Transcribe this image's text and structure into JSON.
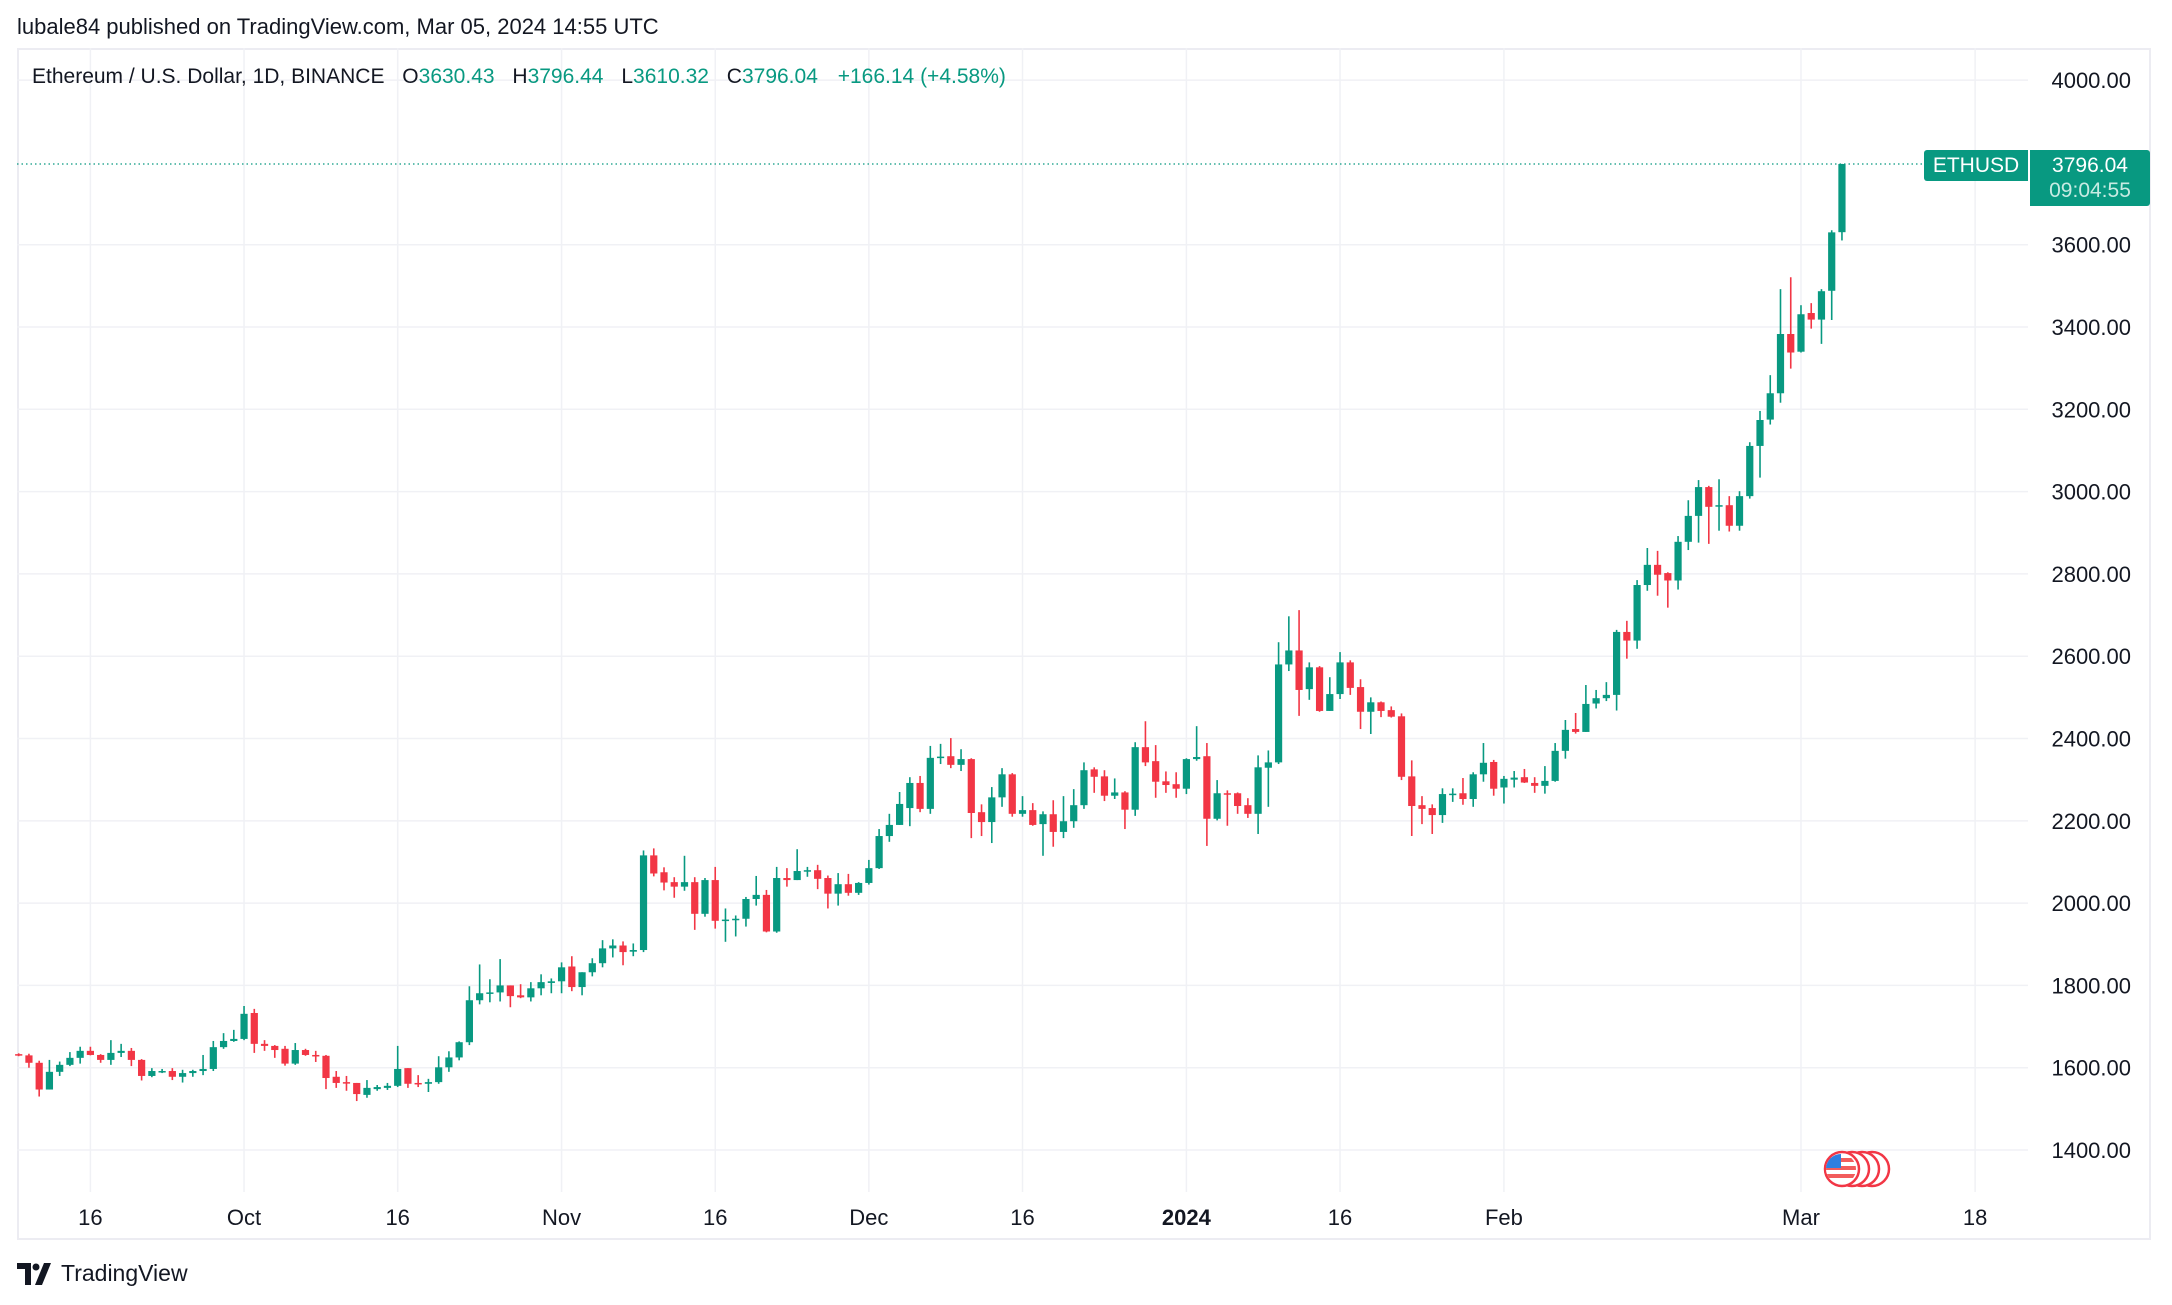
{
  "header": {
    "published": "lubale84 published on TradingView.com, Mar 05, 2024 14:55 UTC"
  },
  "legend": {
    "symbol": "Ethereum / U.S. Dollar, 1D, BINANCE",
    "o_label": "O",
    "o": "3630.43",
    "h_label": "H",
    "h": "3796.44",
    "l_label": "L",
    "l": "3610.32",
    "c_label": "C",
    "c": "3796.04",
    "change": "+166.14 (+4.58%)"
  },
  "price_label": {
    "ticker": "ETHUSD",
    "price": "3796.04",
    "countdown": "09:04:55"
  },
  "footer": {
    "brand": "TradingView"
  },
  "icons": {
    "events": "us-flag-economic-events-icon",
    "logo": "tradingview-logo-icon"
  },
  "colors": {
    "up": "#089981",
    "down": "#f23645",
    "grid": "#f0f1f5",
    "text": "#131722"
  },
  "chart_data": {
    "type": "candlestick",
    "title": "",
    "ylim": [
      1298,
      4078
    ],
    "grid": true,
    "yticks": [
      "1400.00",
      "1600.00",
      "1800.00",
      "2000.00",
      "2200.00",
      "2400.00",
      "2600.00",
      "2800.00",
      "3000.00",
      "3200.00",
      "3400.00",
      "3600.00",
      "4000.00"
    ],
    "xticks": [
      {
        "label": "16",
        "date": "2023-09-16"
      },
      {
        "label": "Oct",
        "date": "2023-10-01"
      },
      {
        "label": "16",
        "date": "2023-10-16"
      },
      {
        "label": "Nov",
        "date": "2023-11-01"
      },
      {
        "label": "16",
        "date": "2023-11-16"
      },
      {
        "label": "Dec",
        "date": "2023-12-01"
      },
      {
        "label": "16",
        "date": "2023-12-16"
      },
      {
        "label": "2024",
        "date": "2024-01-01",
        "bold": true
      },
      {
        "label": "16",
        "date": "2024-01-16"
      },
      {
        "label": "Feb",
        "date": "2024-02-01"
      },
      {
        "label": "Mar",
        "date": "2024-03-01"
      },
      {
        "label": "18",
        "date": "2024-03-18"
      }
    ],
    "candles_format": [
      "date",
      "open",
      "high",
      "low",
      "close"
    ],
    "candles": [
      [
        "2023-09-09",
        1633,
        1635,
        1628,
        1630
      ],
      [
        "2023-09-10",
        1630,
        1634,
        1600,
        1612
      ],
      [
        "2023-09-11",
        1612,
        1617,
        1530,
        1547
      ],
      [
        "2023-09-12",
        1547,
        1619,
        1547,
        1590
      ],
      [
        "2023-09-13",
        1590,
        1615,
        1580,
        1607
      ],
      [
        "2023-09-14",
        1607,
        1638,
        1604,
        1624
      ],
      [
        "2023-09-15",
        1624,
        1651,
        1610,
        1641
      ],
      [
        "2023-09-16",
        1641,
        1651,
        1630,
        1631
      ],
      [
        "2023-09-17",
        1631,
        1633,
        1612,
        1619
      ],
      [
        "2023-09-18",
        1619,
        1667,
        1607,
        1636
      ],
      [
        "2023-09-19",
        1636,
        1658,
        1626,
        1641
      ],
      [
        "2023-09-20",
        1641,
        1648,
        1604,
        1619
      ],
      [
        "2023-09-21",
        1619,
        1621,
        1569,
        1580
      ],
      [
        "2023-09-22",
        1580,
        1599,
        1577,
        1592
      ],
      [
        "2023-09-23",
        1590,
        1597,
        1587,
        1592
      ],
      [
        "2023-09-24",
        1592,
        1599,
        1570,
        1578
      ],
      [
        "2023-09-25",
        1578,
        1595,
        1564,
        1587
      ],
      [
        "2023-09-26",
        1587,
        1595,
        1578,
        1592
      ],
      [
        "2023-09-27",
        1592,
        1631,
        1582,
        1597
      ],
      [
        "2023-09-28",
        1597,
        1665,
        1592,
        1650
      ],
      [
        "2023-09-29",
        1650,
        1684,
        1646,
        1665
      ],
      [
        "2023-09-30",
        1665,
        1692,
        1663,
        1670
      ],
      [
        "2023-10-01",
        1670,
        1750,
        1667,
        1731
      ],
      [
        "2023-10-02",
        1733,
        1743,
        1636,
        1658
      ],
      [
        "2023-10-03",
        1658,
        1667,
        1641,
        1653
      ],
      [
        "2023-10-04",
        1653,
        1655,
        1624,
        1643
      ],
      [
        "2023-10-05",
        1646,
        1653,
        1605,
        1610
      ],
      [
        "2023-10-06",
        1610,
        1660,
        1607,
        1643
      ],
      [
        "2023-10-07",
        1643,
        1646,
        1629,
        1631
      ],
      [
        "2023-10-08",
        1631,
        1641,
        1614,
        1629
      ],
      [
        "2023-10-09",
        1629,
        1631,
        1548,
        1575
      ],
      [
        "2023-10-10",
        1578,
        1592,
        1551,
        1563
      ],
      [
        "2023-10-11",
        1565,
        1580,
        1544,
        1563
      ],
      [
        "2023-10-12",
        1563,
        1563,
        1519,
        1536
      ],
      [
        "2023-10-13",
        1534,
        1570,
        1527,
        1551
      ],
      [
        "2023-10-14",
        1548,
        1558,
        1544,
        1553
      ],
      [
        "2023-10-15",
        1551,
        1563,
        1546,
        1556
      ],
      [
        "2023-10-16",
        1556,
        1653,
        1553,
        1597
      ],
      [
        "2023-10-17",
        1599,
        1599,
        1551,
        1561
      ],
      [
        "2023-10-18",
        1563,
        1582,
        1553,
        1561
      ],
      [
        "2023-10-19",
        1561,
        1573,
        1541,
        1565
      ],
      [
        "2023-10-20",
        1565,
        1628,
        1561,
        1601
      ],
      [
        "2023-10-21",
        1601,
        1640,
        1590,
        1625
      ],
      [
        "2023-10-22",
        1625,
        1664,
        1618,
        1662
      ],
      [
        "2023-10-23",
        1662,
        1798,
        1655,
        1764
      ],
      [
        "2023-10-24",
        1764,
        1851,
        1754,
        1781
      ],
      [
        "2023-10-25",
        1781,
        1815,
        1759,
        1783
      ],
      [
        "2023-10-26",
        1783,
        1864,
        1761,
        1800
      ],
      [
        "2023-10-27",
        1800,
        1800,
        1747,
        1774
      ],
      [
        "2023-10-28",
        1776,
        1803,
        1769,
        1771
      ],
      [
        "2023-10-29",
        1771,
        1808,
        1761,
        1793
      ],
      [
        "2023-10-30",
        1793,
        1827,
        1776,
        1808
      ],
      [
        "2023-10-31",
        1806,
        1817,
        1781,
        1810
      ],
      [
        "2023-11-01",
        1810,
        1856,
        1781,
        1844
      ],
      [
        "2023-11-02",
        1846,
        1871,
        1786,
        1796
      ],
      [
        "2023-11-03",
        1796,
        1832,
        1776,
        1832
      ],
      [
        "2023-11-04",
        1832,
        1866,
        1822,
        1854
      ],
      [
        "2023-11-05",
        1854,
        1910,
        1844,
        1890
      ],
      [
        "2023-11-06",
        1890,
        1912,
        1868,
        1897
      ],
      [
        "2023-11-07",
        1897,
        1907,
        1849,
        1881
      ],
      [
        "2023-11-08",
        1882,
        1902,
        1871,
        1886
      ],
      [
        "2023-11-09",
        1886,
        2128,
        1881,
        2116
      ],
      [
        "2023-11-10",
        2116,
        2133,
        2065,
        2072
      ],
      [
        "2023-11-11",
        2075,
        2087,
        2031,
        2050
      ],
      [
        "2023-11-12",
        2051,
        2063,
        2013,
        2040
      ],
      [
        "2023-11-13",
        2040,
        2115,
        2030,
        2051
      ],
      [
        "2023-11-14",
        2051,
        2063,
        1935,
        1974
      ],
      [
        "2023-11-15",
        1974,
        2061,
        1967,
        2056
      ],
      [
        "2023-11-16",
        2056,
        2088,
        1938,
        1957
      ],
      [
        "2023-11-17",
        1957,
        1987,
        1906,
        1960
      ],
      [
        "2023-11-18",
        1960,
        1970,
        1919,
        1962
      ],
      [
        "2023-11-19",
        1962,
        2015,
        1943,
        2010
      ],
      [
        "2023-11-20",
        2010,
        2066,
        1994,
        2020
      ],
      [
        "2023-11-21",
        2020,
        2032,
        1929,
        1931
      ],
      [
        "2023-11-22",
        1931,
        2088,
        1928,
        2061
      ],
      [
        "2023-11-23",
        2061,
        2085,
        2040,
        2056
      ],
      [
        "2023-11-24",
        2056,
        2131,
        2056,
        2078
      ],
      [
        "2023-11-25",
        2078,
        2088,
        2064,
        2080
      ],
      [
        "2023-11-26",
        2080,
        2093,
        2034,
        2059
      ],
      [
        "2023-11-27",
        2061,
        2067,
        1987,
        2023
      ],
      [
        "2023-11-28",
        2023,
        2073,
        1994,
        2046
      ],
      [
        "2023-11-29",
        2046,
        2071,
        2018,
        2025
      ],
      [
        "2023-11-30",
        2025,
        2051,
        2020,
        2049
      ],
      [
        "2023-12-01",
        2049,
        2105,
        2045,
        2085
      ],
      [
        "2023-12-02",
        2085,
        2180,
        2083,
        2163
      ],
      [
        "2023-12-03",
        2163,
        2217,
        2149,
        2190
      ],
      [
        "2023-12-04",
        2190,
        2270,
        2190,
        2241
      ],
      [
        "2023-12-05",
        2231,
        2306,
        2187,
        2292
      ],
      [
        "2023-12-06",
        2292,
        2309,
        2221,
        2229
      ],
      [
        "2023-12-07",
        2229,
        2382,
        2217,
        2353
      ],
      [
        "2023-12-08",
        2353,
        2387,
        2338,
        2356
      ],
      [
        "2023-12-09",
        2357,
        2401,
        2328,
        2336
      ],
      [
        "2023-12-10",
        2336,
        2374,
        2321,
        2350
      ],
      [
        "2023-12-11",
        2350,
        2352,
        2158,
        2219
      ],
      [
        "2023-12-12",
        2221,
        2240,
        2163,
        2197
      ],
      [
        "2023-12-13",
        2197,
        2282,
        2146,
        2257
      ],
      [
        "2023-12-14",
        2257,
        2328,
        2234,
        2313
      ],
      [
        "2023-12-15",
        2313,
        2316,
        2210,
        2217
      ],
      [
        "2023-12-16",
        2217,
        2260,
        2210,
        2226
      ],
      [
        "2023-12-17",
        2226,
        2243,
        2188,
        2190
      ],
      [
        "2023-12-18",
        2192,
        2223,
        2115,
        2216
      ],
      [
        "2023-12-19",
        2216,
        2250,
        2137,
        2173
      ],
      [
        "2023-12-20",
        2173,
        2260,
        2158,
        2199
      ],
      [
        "2023-12-21",
        2199,
        2277,
        2183,
        2238
      ],
      [
        "2023-12-22",
        2238,
        2342,
        2229,
        2323
      ],
      [
        "2023-12-23",
        2325,
        2330,
        2268,
        2307
      ],
      [
        "2023-12-24",
        2308,
        2323,
        2248,
        2261
      ],
      [
        "2023-12-25",
        2261,
        2303,
        2253,
        2269
      ],
      [
        "2023-12-26",
        2269,
        2272,
        2180,
        2227
      ],
      [
        "2023-12-27",
        2227,
        2391,
        2212,
        2379
      ],
      [
        "2023-12-28",
        2379,
        2442,
        2333,
        2342
      ],
      [
        "2023-12-29",
        2345,
        2384,
        2256,
        2295
      ],
      [
        "2023-12-30",
        2296,
        2320,
        2268,
        2287
      ],
      [
        "2023-12-31",
        2289,
        2318,
        2256,
        2278
      ],
      [
        "2024-01-01",
        2278,
        2352,
        2265,
        2350
      ],
      [
        "2024-01-02",
        2350,
        2430,
        2346,
        2355
      ],
      [
        "2024-01-03",
        2357,
        2389,
        2139,
        2205
      ],
      [
        "2024-01-04",
        2205,
        2299,
        2201,
        2267
      ],
      [
        "2024-01-05",
        2267,
        2274,
        2188,
        2266
      ],
      [
        "2024-01-06",
        2267,
        2269,
        2217,
        2236
      ],
      [
        "2024-01-07",
        2238,
        2255,
        2207,
        2217
      ],
      [
        "2024-01-08",
        2217,
        2359,
        2168,
        2330
      ],
      [
        "2024-01-09",
        2329,
        2371,
        2234,
        2342
      ],
      [
        "2024-01-10",
        2342,
        2634,
        2338,
        2580
      ],
      [
        "2024-01-11",
        2580,
        2697,
        2564,
        2614
      ],
      [
        "2024-01-12",
        2614,
        2712,
        2455,
        2518
      ],
      [
        "2024-01-13",
        2520,
        2585,
        2494,
        2573
      ],
      [
        "2024-01-14",
        2573,
        2576,
        2465,
        2467
      ],
      [
        "2024-01-15",
        2467,
        2549,
        2467,
        2508
      ],
      [
        "2024-01-16",
        2508,
        2610,
        2496,
        2585
      ],
      [
        "2024-01-17",
        2585,
        2590,
        2506,
        2523
      ],
      [
        "2024-01-18",
        2525,
        2544,
        2423,
        2465
      ],
      [
        "2024-01-19",
        2465,
        2500,
        2411,
        2488
      ],
      [
        "2024-01-20",
        2488,
        2490,
        2452,
        2467
      ],
      [
        "2024-01-21",
        2469,
        2478,
        2451,
        2453
      ],
      [
        "2024-01-22",
        2454,
        2461,
        2299,
        2307
      ],
      [
        "2024-01-23",
        2308,
        2347,
        2163,
        2236
      ],
      [
        "2024-01-24",
        2238,
        2260,
        2192,
        2229
      ],
      [
        "2024-01-25",
        2231,
        2240,
        2168,
        2214
      ],
      [
        "2024-01-26",
        2214,
        2279,
        2195,
        2265
      ],
      [
        "2024-01-27",
        2265,
        2279,
        2246,
        2266
      ],
      [
        "2024-01-28",
        2267,
        2304,
        2239,
        2253
      ],
      [
        "2024-01-29",
        2253,
        2318,
        2234,
        2313
      ],
      [
        "2024-01-30",
        2313,
        2389,
        2295,
        2341
      ],
      [
        "2024-01-31",
        2343,
        2348,
        2261,
        2278
      ],
      [
        "2024-02-01",
        2281,
        2309,
        2242,
        2302
      ],
      [
        "2024-02-02",
        2300,
        2321,
        2281,
        2305
      ],
      [
        "2024-02-03",
        2306,
        2326,
        2292,
        2293
      ],
      [
        "2024-02-04",
        2292,
        2306,
        2268,
        2285
      ],
      [
        "2024-02-05",
        2285,
        2333,
        2266,
        2297
      ],
      [
        "2024-02-06",
        2297,
        2389,
        2295,
        2370
      ],
      [
        "2024-02-07",
        2370,
        2445,
        2351,
        2421
      ],
      [
        "2024-02-08",
        2423,
        2462,
        2412,
        2416
      ],
      [
        "2024-02-09",
        2416,
        2530,
        2416,
        2484
      ],
      [
        "2024-02-10",
        2485,
        2518,
        2473,
        2498
      ],
      [
        "2024-02-11",
        2498,
        2537,
        2491,
        2506
      ],
      [
        "2024-02-12",
        2506,
        2664,
        2468,
        2659
      ],
      [
        "2024-02-13",
        2659,
        2686,
        2594,
        2638
      ],
      [
        "2024-02-14",
        2638,
        2785,
        2618,
        2773
      ],
      [
        "2024-02-15",
        2773,
        2863,
        2759,
        2822
      ],
      [
        "2024-02-16",
        2822,
        2856,
        2747,
        2798
      ],
      [
        "2024-02-17",
        2802,
        2804,
        2718,
        2784
      ],
      [
        "2024-02-18",
        2784,
        2892,
        2762,
        2878
      ],
      [
        "2024-02-19",
        2878,
        2979,
        2858,
        2941
      ],
      [
        "2024-02-20",
        2941,
        3028,
        2876,
        3011
      ],
      [
        "2024-02-21",
        3011,
        3014,
        2873,
        2963
      ],
      [
        "2024-02-22",
        2965,
        3030,
        2905,
        2967
      ],
      [
        "2024-02-23",
        2967,
        2989,
        2903,
        2917
      ],
      [
        "2024-02-24",
        2917,
        3001,
        2905,
        2989
      ],
      [
        "2024-02-25",
        2989,
        3120,
        2983,
        3111
      ],
      [
        "2024-02-26",
        3111,
        3196,
        3034,
        3174
      ],
      [
        "2024-02-27",
        3175,
        3283,
        3163,
        3239
      ],
      [
        "2024-02-28",
        3239,
        3492,
        3216,
        3383
      ],
      [
        "2024-02-29",
        3383,
        3521,
        3299,
        3338
      ],
      [
        "2024-03-01",
        3340,
        3453,
        3338,
        3431
      ],
      [
        "2024-03-02",
        3434,
        3458,
        3396,
        3418
      ],
      [
        "2024-03-03",
        3418,
        3492,
        3359,
        3487
      ],
      [
        "2024-03-04",
        3488,
        3635,
        3417,
        3630
      ],
      [
        "2024-03-05",
        3630.43,
        3796.44,
        3610.32,
        3796.04
      ]
    ]
  }
}
